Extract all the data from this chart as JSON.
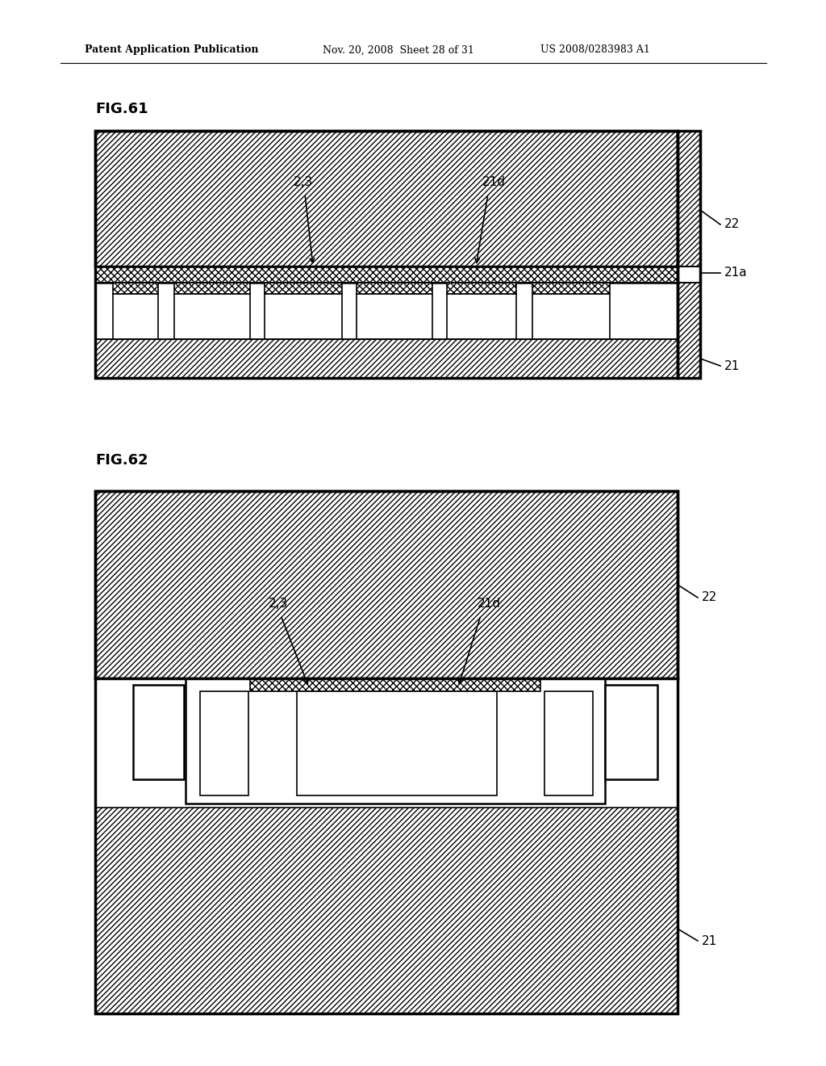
{
  "bg_color": "#ffffff",
  "line_color": "#000000",
  "header_text_left": "Patent Application Publication",
  "header_text_mid": "Nov. 20, 2008  Sheet 28 of 31",
  "header_text_right": "US 2008/0283983 A1",
  "fig61_label": "FIG.61",
  "fig62_label": "FIG.62",
  "label_22": "22",
  "label_21a": "21a",
  "label_21": "21",
  "label_2_3": "2,3",
  "label_21d": "21d"
}
